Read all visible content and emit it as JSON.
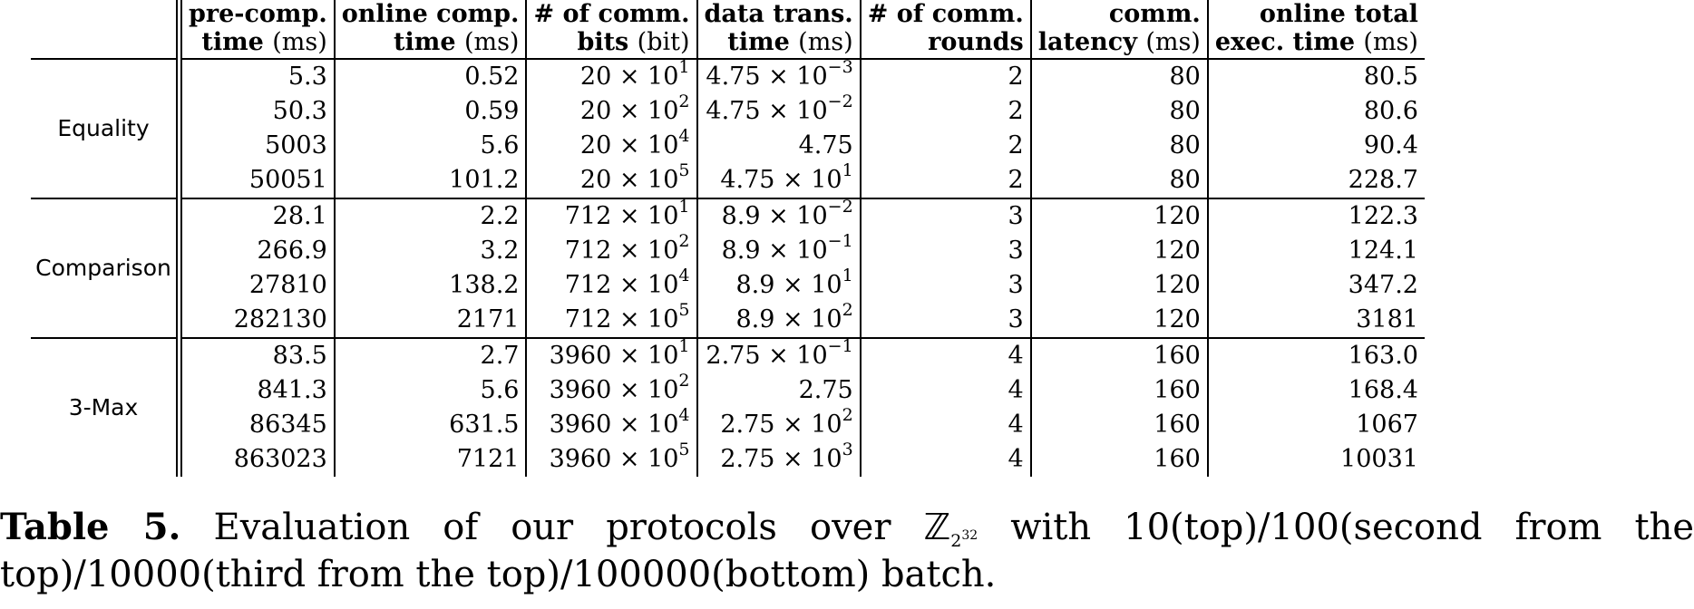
{
  "table": {
    "headers": [
      {
        "line1": "",
        "line2": ""
      },
      {
        "line1": "pre-comp.",
        "line2": "time",
        "unit": "(ms)"
      },
      {
        "line1": "online comp.",
        "line2": "time",
        "unit": "(ms)"
      },
      {
        "line1": "# of comm.",
        "line2": "bits",
        "unit": "(bit)"
      },
      {
        "line1": "data trans.",
        "line2": "time",
        "unit": "(ms)"
      },
      {
        "line1": "# of comm.",
        "line2": "rounds",
        "unit": ""
      },
      {
        "line1": "comm.",
        "line2": "latency",
        "unit": "(ms)"
      },
      {
        "line1": "online total",
        "line2": "exec. time",
        "unit": "(ms)"
      }
    ],
    "groups": [
      {
        "label": "Equality",
        "rows": [
          {
            "pre": "5.3",
            "online": "0.52",
            "bits_base": "20 × 10",
            "bits_exp": "1",
            "dt_base": "4.75 × 10",
            "dt_exp": "−3",
            "rounds": "2",
            "latency": "80",
            "total": "80.5"
          },
          {
            "pre": "50.3",
            "online": "0.59",
            "bits_base": "20 × 10",
            "bits_exp": "2",
            "dt_base": "4.75 × 10",
            "dt_exp": "−2",
            "rounds": "2",
            "latency": "80",
            "total": "80.6"
          },
          {
            "pre": "5003",
            "online": "5.6",
            "bits_base": "20 × 10",
            "bits_exp": "4",
            "dt_base": "4.75",
            "dt_exp": "",
            "rounds": "2",
            "latency": "80",
            "total": "90.4"
          },
          {
            "pre": "50051",
            "online": "101.2",
            "bits_base": "20 × 10",
            "bits_exp": "5",
            "dt_base": "4.75 × 10",
            "dt_exp": "1",
            "rounds": "2",
            "latency": "80",
            "total": "228.7"
          }
        ]
      },
      {
        "label": "Comparison",
        "rows": [
          {
            "pre": "28.1",
            "online": "2.2",
            "bits_base": "712 × 10",
            "bits_exp": "1",
            "dt_base": "8.9 × 10",
            "dt_exp": "−2",
            "rounds": "3",
            "latency": "120",
            "total": "122.3"
          },
          {
            "pre": "266.9",
            "online": "3.2",
            "bits_base": "712 × 10",
            "bits_exp": "2",
            "dt_base": "8.9 × 10",
            "dt_exp": "−1",
            "rounds": "3",
            "latency": "120",
            "total": "124.1"
          },
          {
            "pre": "27810",
            "online": "138.2",
            "bits_base": "712 × 10",
            "bits_exp": "4",
            "dt_base": "8.9 × 10",
            "dt_exp": "1",
            "rounds": "3",
            "latency": "120",
            "total": "347.2"
          },
          {
            "pre": "282130",
            "online": "2171",
            "bits_base": "712 × 10",
            "bits_exp": "5",
            "dt_base": "8.9 × 10",
            "dt_exp": "2",
            "rounds": "3",
            "latency": "120",
            "total": "3181"
          }
        ]
      },
      {
        "label": "3-Max",
        "rows": [
          {
            "pre": "83.5",
            "online": "2.7",
            "bits_base": "3960 × 10",
            "bits_exp": "1",
            "dt_base": "2.75 × 10",
            "dt_exp": "−1",
            "rounds": "4",
            "latency": "160",
            "total": "163.0"
          },
          {
            "pre": "841.3",
            "online": "5.6",
            "bits_base": "3960 × 10",
            "bits_exp": "2",
            "dt_base": "2.75",
            "dt_exp": "",
            "rounds": "4",
            "latency": "160",
            "total": "168.4"
          },
          {
            "pre": "86345",
            "online": "631.5",
            "bits_base": "3960 × 10",
            "bits_exp": "4",
            "dt_base": "2.75 × 10",
            "dt_exp": "2",
            "rounds": "4",
            "latency": "160",
            "total": "1067"
          },
          {
            "pre": "863023",
            "online": "7121",
            "bits_base": "3960 × 10",
            "bits_exp": "5",
            "dt_base": "2.75 × 10",
            "dt_exp": "3",
            "rounds": "4",
            "latency": "160",
            "total": "10031"
          }
        ]
      }
    ]
  },
  "caption": {
    "label": "Table 5.",
    "text_before": "Evaluation of our protocols over",
    "ring_symbol": "ℤ",
    "ring_sub": "2",
    "ring_sup": "32",
    "text_after": "with 10(top)/100(second from the top)/10000(third from the top)/100000(bottom) batch."
  }
}
